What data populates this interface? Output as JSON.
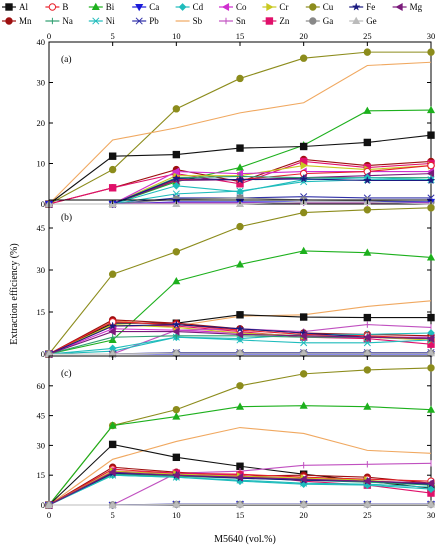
{
  "chart_data": {
    "type": "line",
    "x_values": [
      0,
      5,
      10,
      15,
      20,
      25,
      30
    ],
    "xlabel": "M5640 (vol.%)",
    "ylabel": "Extraction efficiency (%)",
    "xlim": [
      0,
      30
    ],
    "x_ticks": [
      0,
      5,
      10,
      15,
      20,
      25,
      30
    ],
    "legend": {
      "placement": "top",
      "entries": [
        {
          "name": "Al",
          "color": "#111111",
          "marker": "square"
        },
        {
          "name": "B",
          "color": "#e8202a",
          "marker": "circle-open"
        },
        {
          "name": "Bi",
          "color": "#1db01d",
          "marker": "triangle"
        },
        {
          "name": "Ca",
          "color": "#1a1ad9",
          "marker": "triangle-down"
        },
        {
          "name": "Cd",
          "color": "#1fbcbc",
          "marker": "diamond"
        },
        {
          "name": "Co",
          "color": "#cf2fcf",
          "marker": "triangle-left"
        },
        {
          "name": "Cr",
          "color": "#c8c820",
          "marker": "triangle-right"
        },
        {
          "name": "Cu",
          "color": "#8c8c1c",
          "marker": "circle"
        },
        {
          "name": "Fe",
          "color": "#1a1a80",
          "marker": "star"
        },
        {
          "name": "Mg",
          "color": "#7a1a7a",
          "marker": "triangle-left"
        },
        {
          "name": "Mn",
          "color": "#9e1010",
          "marker": "circle-half"
        },
        {
          "name": "Na",
          "color": "#2e9e70",
          "marker": "vbar"
        },
        {
          "name": "Ni",
          "color": "#1fbcbc",
          "marker": "x"
        },
        {
          "name": "Pb",
          "color": "#3030a8",
          "marker": "x"
        },
        {
          "name": "Sb",
          "color": "#f0a860",
          "marker": "none"
        },
        {
          "name": "Sn",
          "color": "#c050c0",
          "marker": "vbar"
        },
        {
          "name": "Zn",
          "color": "#e0106a",
          "marker": "square"
        },
        {
          "name": "Ga",
          "color": "#888888",
          "marker": "circle"
        },
        {
          "name": "Ge",
          "color": "#bbbbbb",
          "marker": "triangle"
        }
      ]
    },
    "panels": [
      {
        "label": "(a)",
        "ylim": [
          0,
          40
        ],
        "y_ticks": [
          0,
          10,
          20,
          30,
          40
        ],
        "series": [
          {
            "name": "Cu",
            "values": [
              0,
              8.5,
              23.5,
              31,
              36,
              37.5,
              37.5
            ]
          },
          {
            "name": "Sb",
            "values": [
              0,
              15.8,
              18.8,
              22.5,
              25,
              34.2,
              35
            ]
          },
          {
            "name": "Bi",
            "values": [
              0,
              0,
              5.5,
              9,
              14.5,
              23,
              23.2
            ]
          },
          {
            "name": "Al",
            "values": [
              0,
              11.8,
              12.2,
              13.8,
              14.2,
              15.2,
              17
            ]
          },
          {
            "name": "Mn",
            "values": [
              0,
              4,
              8.5,
              5.5,
              11,
              9.5,
              10.5
            ]
          },
          {
            "name": "Zn",
            "values": [
              0,
              4,
              7.5,
              5,
              10.5,
              9,
              10
            ]
          },
          {
            "name": "Cr",
            "values": [
              0,
              0,
              7,
              7,
              9.5,
              8.5,
              9.5
            ]
          },
          {
            "name": "Co",
            "values": [
              0,
              0,
              8,
              7.5,
              8,
              8,
              8
            ]
          },
          {
            "name": "B",
            "values": [
              0,
              0,
              6,
              6,
              7.5,
              8,
              9.5
            ]
          },
          {
            "name": "Mg",
            "values": [
              0,
              0,
              5.8,
              6,
              6.5,
              7,
              7.5
            ]
          },
          {
            "name": "Na",
            "values": [
              0,
              0,
              6.5,
              6.8,
              6.5,
              6.5,
              6.5
            ]
          },
          {
            "name": "Cd",
            "values": [
              0,
              0,
              4.5,
              3,
              6,
              6.5,
              6
            ]
          },
          {
            "name": "Ni",
            "values": [
              0,
              0,
              2.5,
              3.2,
              5.5,
              6,
              6
            ]
          },
          {
            "name": "Fe",
            "values": [
              0,
              0,
              6.3,
              6,
              6.2,
              5.8,
              5.8
            ]
          },
          {
            "name": "Pb",
            "values": [
              0,
              0,
              1.5,
              1.5,
              1.8,
              1.5,
              1.5
            ]
          },
          {
            "name": "Ga",
            "values": [
              0,
              0,
              1.2,
              1.5,
              1,
              0.8,
              0.5
            ]
          },
          {
            "name": "Ca",
            "values": [
              0,
              0,
              0.5,
              0.5,
              0.5,
              0.5,
              0.5
            ]
          },
          {
            "name": "Sn",
            "values": [
              0,
              0,
              0.3,
              0.3,
              0.3,
              0.3,
              0.3
            ]
          },
          {
            "name": "Ge",
            "values": [
              0,
              0,
              0,
              0,
              0.5,
              0.5,
              0
            ]
          }
        ]
      },
      {
        "label": "(b)",
        "ylim": [
          0,
          55
        ],
        "y_ticks": [
          0,
          15,
          30,
          45
        ],
        "series": [
          {
            "name": "Cu",
            "values": [
              0,
              28.5,
              36.5,
              45.5,
              50.5,
              51.5,
              52.2
            ]
          },
          {
            "name": "Bi",
            "values": [
              0,
              5,
              26,
              32,
              36.8,
              36.2,
              34.5
            ]
          },
          {
            "name": "Sb",
            "values": [
              0,
              12,
              10,
              13.5,
              14,
              17,
              19
            ]
          },
          {
            "name": "Al",
            "values": [
              0,
              11,
              11,
              14,
              13.2,
              13,
              13
            ]
          },
          {
            "name": "Mn",
            "values": [
              0,
              12.2,
              11,
              9,
              7.5,
              7,
              6.5
            ]
          },
          {
            "name": "Zn",
            "values": [
              0,
              10,
              10,
              8,
              6,
              5.5,
              3.5
            ]
          },
          {
            "name": "Co",
            "values": [
              0,
              9,
              8.5,
              7.5,
              6.5,
              6,
              6
            ]
          },
          {
            "name": "Cr",
            "values": [
              0,
              10.5,
              9.5,
              7.5,
              6.5,
              6,
              5
            ]
          },
          {
            "name": "Sn",
            "values": [
              0,
              0,
              8.5,
              9,
              8,
              10.5,
              9.5
            ]
          },
          {
            "name": "Cd",
            "values": [
              0,
              2,
              6,
              5.5,
              7,
              7,
              7.5
            ]
          },
          {
            "name": "B",
            "values": [
              0,
              11.5,
              10.5,
              8.5,
              7,
              6.5,
              5.5
            ]
          },
          {
            "name": "Ni",
            "values": [
              0,
              1,
              6,
              5,
              4,
              4,
              5
            ]
          },
          {
            "name": "Fe",
            "values": [
              0,
              10,
              10.5,
              9,
              7.5,
              6,
              5.5
            ]
          },
          {
            "name": "Na",
            "values": [
              0,
              6,
              6.5,
              6.5,
              6,
              6,
              5.5
            ]
          },
          {
            "name": "Mg",
            "values": [
              0,
              8,
              8,
              7,
              6.5,
              6,
              5.5
            ]
          },
          {
            "name": "Ca",
            "values": [
              0,
              0,
              0,
              0,
              0,
              0,
              0
            ]
          },
          {
            "name": "Pb",
            "values": [
              0,
              0,
              0.5,
              0.5,
              0.5,
              0.5,
              0.5
            ]
          },
          {
            "name": "Ga",
            "values": [
              0,
              0,
              0.3,
              0.3,
              0.3,
              0.3,
              0.3
            ]
          },
          {
            "name": "Ge",
            "values": [
              0,
              0,
              0.3,
              0.3,
              0.3,
              0.3,
              0.3
            ]
          }
        ]
      },
      {
        "label": "(c)",
        "ylim": [
          0,
          75
        ],
        "y_ticks": [
          0,
          15,
          30,
          45,
          60
        ],
        "series": [
          {
            "name": "Cu",
            "values": [
              0,
              40,
              48,
              60,
              66,
              68,
              69
            ]
          },
          {
            "name": "Bi",
            "values": [
              0,
              40,
              44.5,
              49.5,
              50,
              49.5,
              48
            ]
          },
          {
            "name": "Sb",
            "values": [
              0,
              23,
              32,
              39,
              36,
              27.5,
              26
            ]
          },
          {
            "name": "Al",
            "values": [
              0,
              30.5,
              24,
              19.5,
              15.5,
              12,
              8.5
            ]
          },
          {
            "name": "Sn",
            "values": [
              0,
              0,
              16,
              17,
              20,
              20.5,
              21
            ]
          },
          {
            "name": "Mn",
            "values": [
              0,
              19,
              16.5,
              14.5,
              15,
              14,
              11
            ]
          },
          {
            "name": "B",
            "values": [
              0,
              18,
              16,
              15.5,
              14,
              13,
              12
            ]
          },
          {
            "name": "Zn",
            "values": [
              0,
              17,
              16,
              15,
              12,
              10,
              6
            ]
          },
          {
            "name": "Co",
            "values": [
              0,
              16,
              15,
              14,
              13,
              12,
              11
            ]
          },
          {
            "name": "Cr",
            "values": [
              0,
              17,
              15.5,
              14.5,
              13.5,
              12.5,
              10
            ]
          },
          {
            "name": "Cd",
            "values": [
              0,
              15,
              14,
              12,
              10.5,
              10,
              8
            ]
          },
          {
            "name": "Na",
            "values": [
              0,
              15.5,
              14.5,
              13.5,
              12.5,
              11.5,
              10
            ]
          },
          {
            "name": "Ni",
            "values": [
              0,
              15,
              14,
              12.5,
              11,
              10.5,
              9
            ]
          },
          {
            "name": "Fe",
            "values": [
              0,
              16,
              15,
              13.5,
              12.5,
              12,
              10.5
            ]
          },
          {
            "name": "Mg",
            "values": [
              0,
              16.5,
              15,
              14,
              13,
              12,
              11
            ]
          },
          {
            "name": "Pb",
            "values": [
              0,
              0,
              0.5,
              0.5,
              0.5,
              0.5,
              0.5
            ]
          },
          {
            "name": "Ca",
            "values": [
              0,
              0,
              0.3,
              0.3,
              0.3,
              0.3,
              0.3
            ]
          },
          {
            "name": "Ga",
            "values": [
              0,
              0,
              0.3,
              0.3,
              0.3,
              0.3,
              0.3
            ]
          },
          {
            "name": "Ge",
            "values": [
              0,
              0,
              0.3,
              0.3,
              0.3,
              0.3,
              0.3
            ]
          }
        ]
      }
    ]
  }
}
